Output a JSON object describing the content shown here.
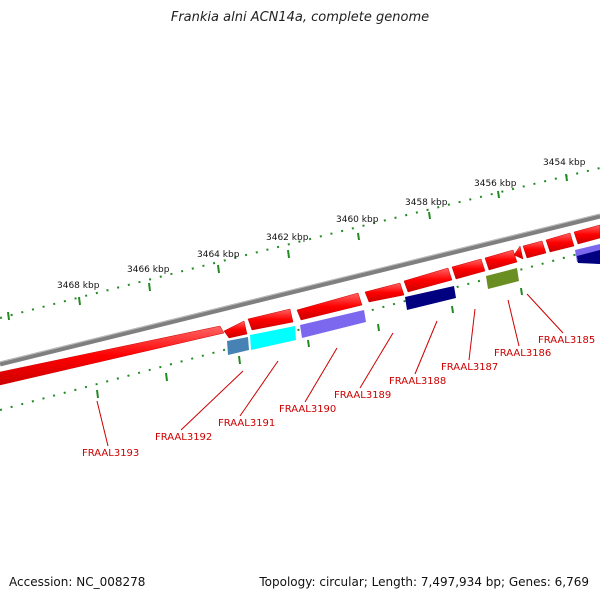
{
  "title": "Frankia alni ACN14a, complete genome",
  "footer": {
    "accession": "Accession: NC_008278",
    "stats": "Topology: circular; Length: 7,497,934 bp; Genes: 6,769"
  },
  "tick_labels": [
    "3454 kbp",
    "3456 kbp",
    "3458 kbp",
    "3460 kbp",
    "3462 kbp",
    "3464 kbp",
    "3466 kbp",
    "3468 kbp"
  ],
  "genes": [
    {
      "name": "FRAAL3185",
      "color": "#ff0000"
    },
    {
      "name": "FRAAL3186",
      "color": "#6b8e23"
    },
    {
      "name": "FRAAL3187",
      "color": "#ff0000"
    },
    {
      "name": "FRAAL3188",
      "color": "#000080"
    },
    {
      "name": "FRAAL3189",
      "color": "#ff0000"
    },
    {
      "name": "FRAAL3190",
      "color": "#7b68ee"
    },
    {
      "name": "FRAAL3191",
      "color": "#00ffff"
    },
    {
      "name": "FRAAL3192",
      "color": "#4682b4"
    },
    {
      "name": "FRAAL3193",
      "color": "#ff0000"
    }
  ],
  "colors": {
    "backbone": "#808080",
    "scale_ticks": "#228b22",
    "label_color": "#cc0000"
  }
}
